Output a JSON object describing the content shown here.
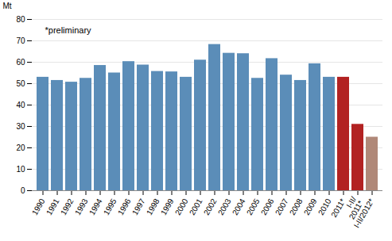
{
  "chart_data": {
    "type": "bar",
    "categories": [
      "1990",
      "1991",
      "1992",
      "1993",
      "1994",
      "1995",
      "1996",
      "1997",
      "1998",
      "1999",
      "2000",
      "2001",
      "2002",
      "2003",
      "2004",
      "2005",
      "2006",
      "2007",
      "2008",
      "2009",
      "2010",
      "2011*",
      "I-II/\n2011*",
      "I-II/2012*"
    ],
    "values": [
      53.0,
      51.5,
      50.7,
      52.5,
      58.5,
      55.0,
      60.3,
      58.7,
      55.7,
      55.5,
      53.0,
      61.0,
      68.3,
      64.2,
      64.0,
      52.5,
      61.7,
      54.0,
      51.5,
      59.3,
      53.0,
      53.0,
      31.0,
      25.0
    ],
    "colors": [
      "#5b8db8",
      "#5b8db8",
      "#5b8db8",
      "#5b8db8",
      "#5b8db8",
      "#5b8db8",
      "#5b8db8",
      "#5b8db8",
      "#5b8db8",
      "#5b8db8",
      "#5b8db8",
      "#5b8db8",
      "#5b8db8",
      "#5b8db8",
      "#5b8db8",
      "#5b8db8",
      "#5b8db8",
      "#5b8db8",
      "#5b8db8",
      "#5b8db8",
      "#5b8db8",
      "#b22222",
      "#b22222",
      "#b08878"
    ],
    "ylabel": "Mt",
    "ylim": [
      0,
      80
    ],
    "yticks": [
      0,
      10,
      20,
      30,
      40,
      50,
      60,
      70,
      80
    ],
    "annotation": "*preliminary",
    "grid": true
  }
}
